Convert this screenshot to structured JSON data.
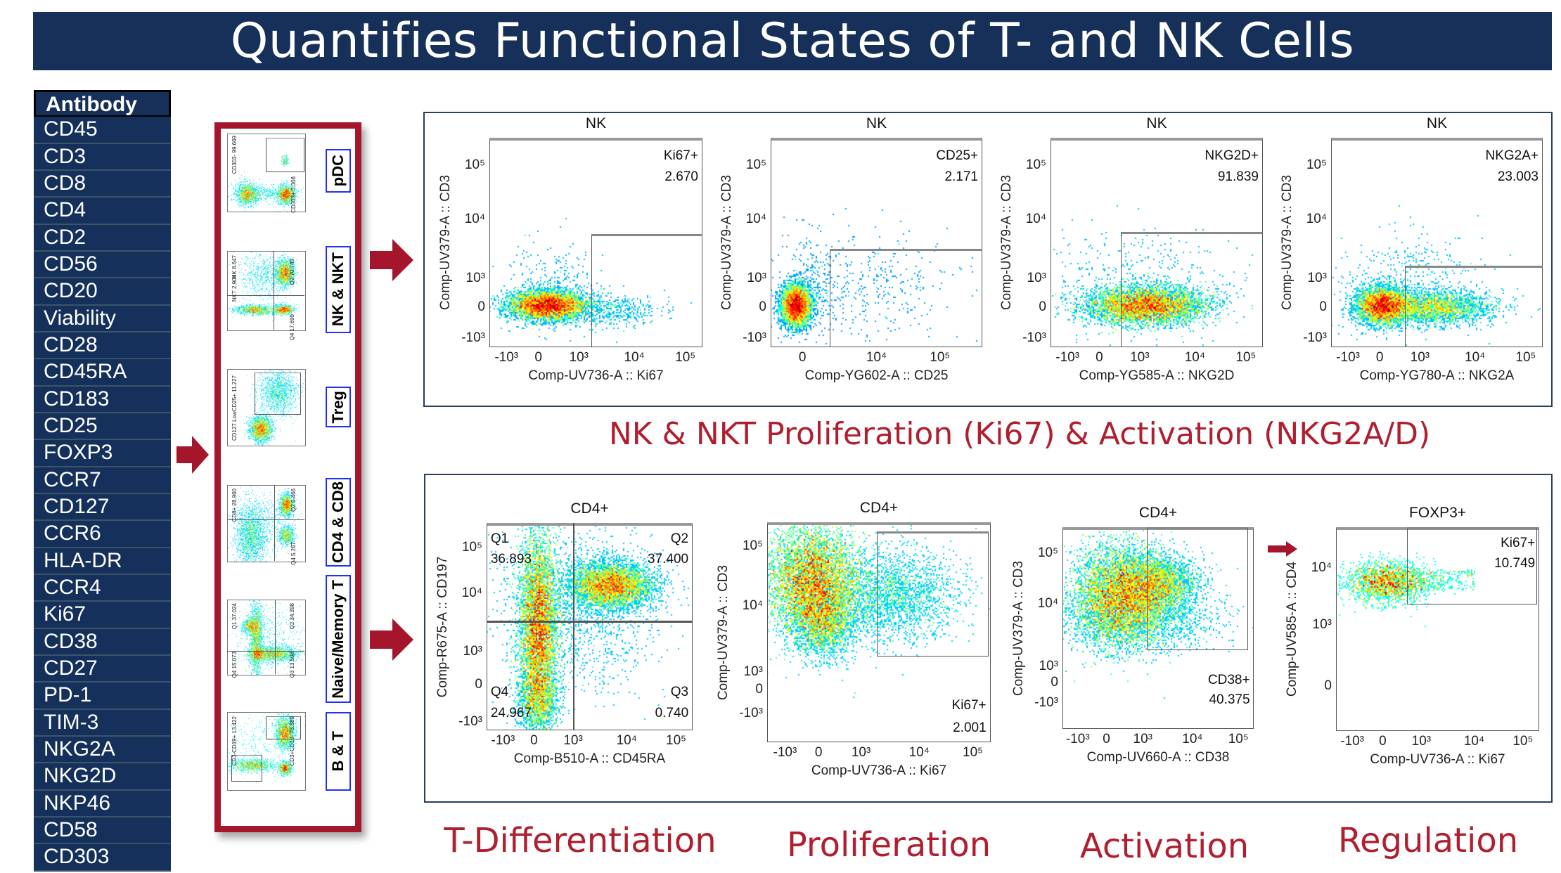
{
  "title": "Quantifies Functional States of T- and NK Cells",
  "antibody_table": {
    "header": "Antibody",
    "items": [
      "CD45",
      "CD3",
      "CD8",
      "CD4",
      "CD2",
      "CD56",
      "CD20",
      "Viability",
      "CD28",
      "CD45RA",
      "CD183",
      "CD25",
      "FOXP3",
      "CCR7",
      "CD127",
      "CCR6",
      "HLA-DR",
      "CCR4",
      "Ki67",
      "CD38",
      "CD27",
      "PD-1",
      "TIM-3",
      "NKG2A",
      "NKG2D",
      "NKP46",
      "CD58",
      "CD303"
    ]
  },
  "colors": {
    "title_bg": "#16305a",
    "frame_red": "#a5162c",
    "caption_red": "#b01f2f",
    "label_border": "#2030ff"
  },
  "gating_thumbnails": [
    {
      "label": "pDC",
      "gates": [
        "CD303-  99.669",
        "CD303+  0.308"
      ]
    },
    {
      "label": "NK & NKT",
      "gates": [
        "NK  8.647",
        "NKT  2.904",
        "Q2  70.749",
        "Q4  17.699"
      ]
    },
    {
      "label": "Treg",
      "gates": [
        "CD127 LowCD25+  11.227"
      ]
    },
    {
      "label": "CD4 & CD8",
      "gates": [
        "CD8+  28.960",
        "Q2  0.466",
        "Q4  5.267"
      ]
    },
    {
      "label": "Naive/Memory T",
      "gates": [
        "Q1  37.024",
        "Q2  34.398",
        "Q3  13.508",
        "Q4  15.073"
      ]
    },
    {
      "label": "B & T",
      "gates": [
        "CD3-CD19+  13.422",
        "CD3+CD19-  73.889"
      ]
    }
  ],
  "nk_panel": {
    "caption": "NK & NKT Proliferation (Ki67) & Activation (NKG2A/D)",
    "plots": [
      {
        "title": "NK",
        "ylabel": "Comp-UV379-A :: CD3",
        "xlabel": "Comp-UV736-A :: Ki67",
        "gates": [
          {
            "name": "Ki67+",
            "value": "2.670"
          }
        ],
        "xticks": [
          "-10³",
          "0",
          "10³",
          "10⁴",
          "10⁵"
        ],
        "yticks": [
          "10⁵",
          "10⁴",
          "10³",
          "0",
          "-10³"
        ]
      },
      {
        "title": "NK",
        "ylabel": "Comp-UV379-A :: CD3",
        "xlabel": "Comp-YG602-A :: CD25",
        "gates": [
          {
            "name": "CD25+",
            "value": "2.171"
          }
        ],
        "xticks": [
          "0",
          "10⁴",
          "10⁵"
        ],
        "yticks": [
          "10⁵",
          "10⁴",
          "10³",
          "0",
          "-10³"
        ]
      },
      {
        "title": "NK",
        "ylabel": "Comp-UV379-A :: CD3",
        "xlabel": "Comp-YG585-A :: NKG2D",
        "gates": [
          {
            "name": "NKG2D+",
            "value": "91.839"
          }
        ],
        "xticks": [
          "-10³",
          "0",
          "10³",
          "10⁴",
          "10⁵"
        ],
        "yticks": [
          "10⁵",
          "10⁴",
          "10³",
          "0",
          "-10³"
        ]
      },
      {
        "title": "NK",
        "ylabel": "Comp-UV379-A :: CD3",
        "xlabel": "Comp-YG780-A :: NKG2A",
        "gates": [
          {
            "name": "NKG2A+",
            "value": "23.003"
          }
        ],
        "xticks": [
          "-10³",
          "0",
          "10³",
          "10⁴",
          "10⁵"
        ],
        "yticks": [
          "10⁵",
          "10⁴",
          "10³",
          "0",
          "-10³"
        ]
      }
    ]
  },
  "t_panel": {
    "captions": [
      "T-Differentiation",
      "Proliferation",
      "Activation",
      "Regulation"
    ],
    "plots": [
      {
        "title": "CD4+",
        "ylabel": "Comp-R675-A :: CD197",
        "xlabel": "Comp-B510-A :: CD45RA",
        "gates": [
          {
            "name": "Q1",
            "value": "36.893"
          },
          {
            "name": "Q2",
            "value": "37.400"
          },
          {
            "name": "Q4",
            "value": "24.967"
          },
          {
            "name": "Q3",
            "value": "0.740"
          }
        ],
        "xticks": [
          "-10³",
          "0",
          "10³",
          "10⁴",
          "10⁵"
        ],
        "yticks": [
          "10⁵",
          "10⁴",
          "10³",
          "0",
          "-10³"
        ]
      },
      {
        "title": "CD4+",
        "ylabel": "Comp-UV379-A :: CD3",
        "xlabel": "Comp-UV736-A :: Ki67",
        "gates": [
          {
            "name": "Ki67+",
            "value": "2.001"
          }
        ],
        "xticks": [
          "-10³",
          "0",
          "10³",
          "10⁴",
          "10⁵"
        ],
        "yticks": [
          "10⁵",
          "10⁴",
          "10³",
          "0",
          "-10³"
        ]
      },
      {
        "title": "CD4+",
        "ylabel": "Comp-UV379-A :: CD3",
        "xlabel": "Comp-UV660-A :: CD38",
        "gates": [
          {
            "name": "CD38+",
            "value": "40.375"
          }
        ],
        "xticks": [
          "-10³",
          "0",
          "10³",
          "10⁴",
          "10⁵"
        ],
        "yticks": [
          "10⁵",
          "10⁴",
          "10³",
          "0",
          "-10³"
        ]
      },
      {
        "title": "FOXP3+",
        "ylabel": "Comp-UV585-A :: CD4",
        "xlabel": "Comp-UV736-A :: Ki67",
        "gates": [
          {
            "name": "Ki67+",
            "value": "10.749"
          }
        ],
        "xticks": [
          "-10³",
          "0",
          "10³",
          "10⁴",
          "10⁵"
        ],
        "yticks": [
          "10⁴",
          "10³",
          "0"
        ]
      }
    ]
  }
}
